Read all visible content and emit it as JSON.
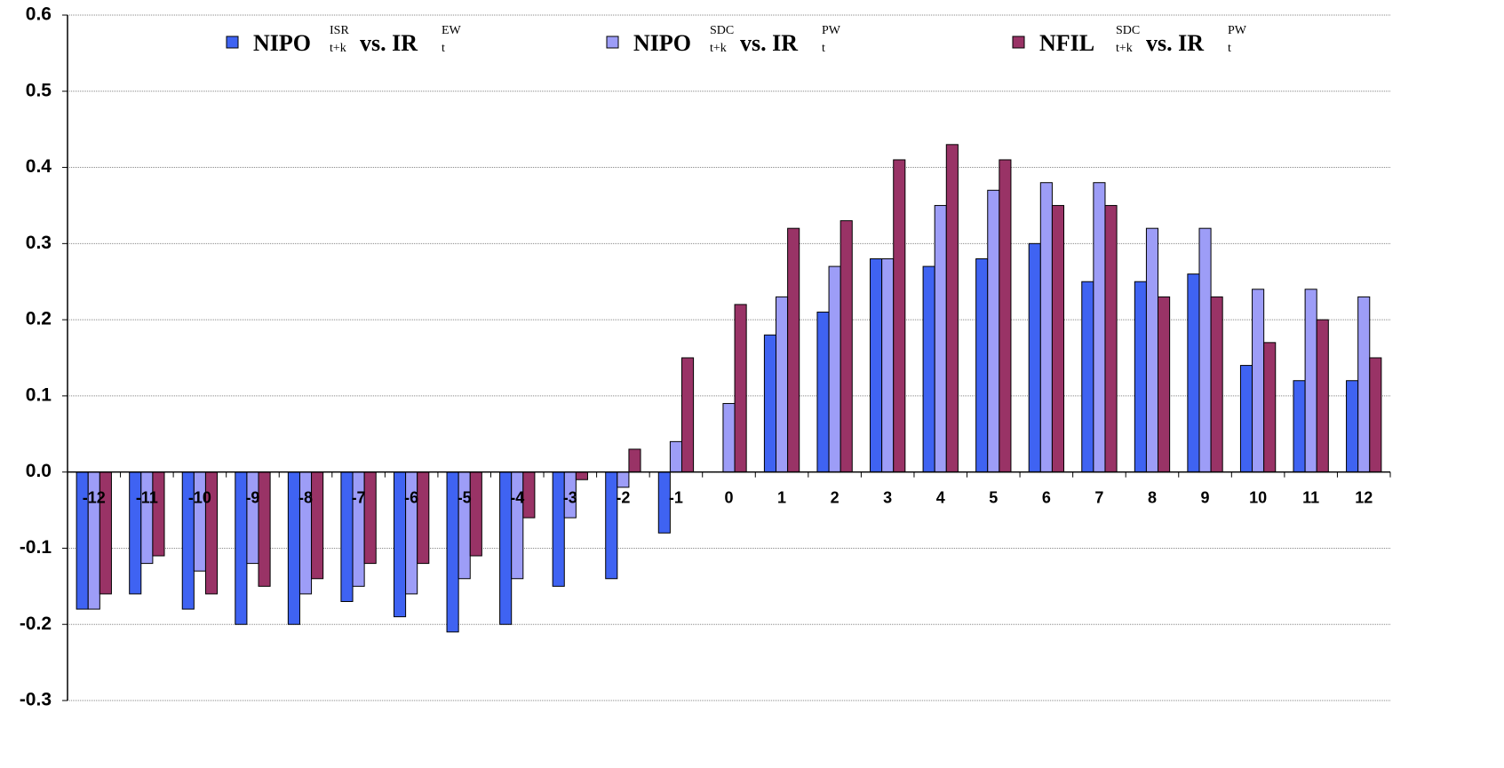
{
  "chart_data": {
    "type": "bar",
    "categories": [
      "-12",
      "-11",
      "-10",
      "-9",
      "-8",
      "-7",
      "-6",
      "-5",
      "-4",
      "-3",
      "-2",
      "-1",
      "0",
      "1",
      "2",
      "3",
      "4",
      "5",
      "6",
      "7",
      "8",
      "9",
      "10",
      "11",
      "12"
    ],
    "series": [
      {
        "name": "NIPO",
        "name_sup": "ISR",
        "name_sub": "t+k",
        "rel": "vs. IR",
        "rel_sup": "EW",
        "rel_sub": "t",
        "color": "#3f63f2",
        "values": [
          -0.18,
          -0.16,
          -0.18,
          -0.2,
          -0.2,
          -0.17,
          -0.19,
          -0.21,
          -0.2,
          -0.15,
          -0.14,
          -0.08,
          null,
          0.18,
          0.21,
          0.28,
          0.27,
          0.28,
          0.3,
          0.25,
          0.25,
          0.26,
          0.14,
          0.12,
          0.12
        ]
      },
      {
        "name": "NIPO",
        "name_sup": "SDC",
        "name_sub": "t+k",
        "rel": "vs. IR",
        "rel_sup": "PW",
        "rel_sub": "t",
        "color": "#9d9df7",
        "values": [
          -0.18,
          -0.12,
          -0.13,
          -0.12,
          -0.16,
          -0.15,
          -0.16,
          -0.14,
          -0.14,
          -0.06,
          -0.02,
          0.04,
          0.09,
          0.23,
          0.27,
          0.28,
          0.35,
          0.37,
          0.38,
          0.38,
          0.32,
          0.32,
          0.24,
          0.24,
          0.23
        ]
      },
      {
        "name": "NFIL",
        "name_sup": "SDC",
        "name_sub": "t+k",
        "rel": "vs. IR",
        "rel_sup": "PW",
        "rel_sub": "t",
        "color": "#993366",
        "values": [
          -0.16,
          -0.11,
          -0.16,
          -0.15,
          -0.14,
          -0.12,
          -0.12,
          -0.11,
          -0.06,
          -0.01,
          0.03,
          0.15,
          0.22,
          0.32,
          0.33,
          0.41,
          0.43,
          0.41,
          0.35,
          0.35,
          0.23,
          0.23,
          0.17,
          0.2,
          0.15
        ]
      }
    ],
    "ylim": [
      -0.3,
      0.6
    ],
    "yticks": [
      -0.3,
      -0.2,
      -0.1,
      {
        "value": 0,
        "label": "0.0"
      },
      0.1,
      0.2,
      0.3,
      0.4,
      0.5,
      0.6
    ],
    "grid": true
  }
}
